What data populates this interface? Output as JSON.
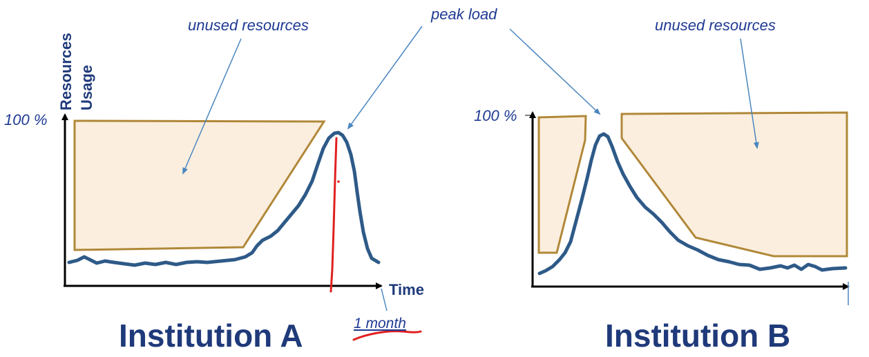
{
  "annotations": {
    "peak_load": "peak load",
    "unused_resources_a": "unused resources",
    "unused_resources_b": "unused resources",
    "one_month": "1 month"
  },
  "axis": {
    "y_label_line1": "Resources",
    "y_label_line2": "Usage",
    "x_label": "Time",
    "hundred_pct_a": "100 %",
    "hundred_pct_b": "100 %"
  },
  "panels": {
    "a_title": "Institution A",
    "b_title": "Institution B"
  },
  "colors": {
    "load_curve": "#2e5a88",
    "unused_fill": "#fbeede",
    "unused_stroke": "#b08838",
    "arrow": "#4a86c0",
    "axis": "#000000",
    "text_blue": "#1f3a7a",
    "marker_red": "#e02020"
  }
}
